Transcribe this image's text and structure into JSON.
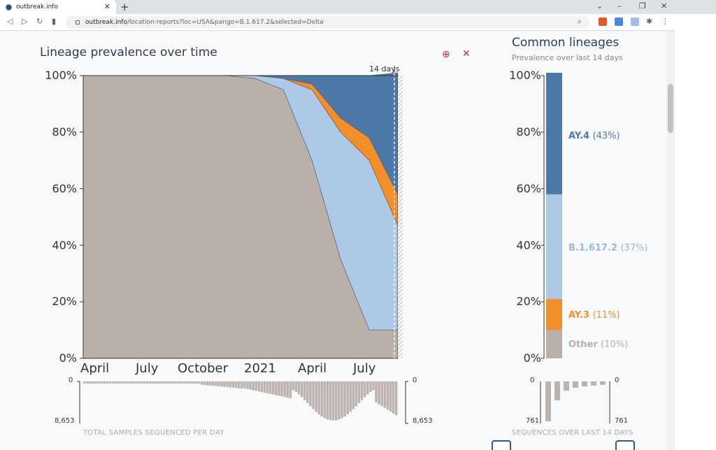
{
  "browser": {
    "tab_title": "outbreak.info",
    "new_tab": "+",
    "close_tab": "✕",
    "url_host": "outbreak.info",
    "url_path": "/location-reports?loc=USA&pango=B.1.617.2&selected=Delta",
    "minimize": "–",
    "restore": "❐",
    "close_window": "✕"
  },
  "main_chart": {
    "title": "Lineage prevalence over time",
    "window_label": "14 days",
    "caption": "TOTAL SAMPLES SEQUENCED PER DAY",
    "y_ticks": [
      "100%",
      "80%",
      "60%",
      "40%",
      "20%",
      "0%"
    ],
    "x_ticks": [
      "April",
      "July",
      "October",
      "2021",
      "April",
      "July"
    ],
    "count_top": "0",
    "count_bottom": "8,653",
    "count_top_right": "0",
    "count_bottom_right": "8,653"
  },
  "side_chart": {
    "title": "Common lineages",
    "subtitle": "Prevalence over last 14 days",
    "y_ticks": [
      "100%",
      "80%",
      "60%",
      "40%",
      "20%",
      "0%"
    ],
    "caption": "SEQUENCES OVER LAST 14 DAYS",
    "count_top": "0",
    "count_bottom": "761",
    "count_top_right": "0",
    "count_bottom_right": "761"
  },
  "chart_data": [
    {
      "type": "area",
      "title": "Lineage prevalence over time",
      "xlabel": "",
      "ylabel": "",
      "ylim": [
        0,
        100
      ],
      "x_tick_labels": [
        "April",
        "July",
        "October",
        "2021",
        "April",
        "July"
      ],
      "series": [
        {
          "name": "Other",
          "color": "#b9b0ab",
          "values": [
            100,
            100,
            100,
            100,
            100,
            100,
            99,
            95,
            70,
            35,
            10,
            10
          ]
        },
        {
          "name": "B.1.617.2",
          "color": "#aec9e8",
          "values": [
            0,
            0,
            0,
            0,
            0,
            0,
            1,
            4,
            25,
            45,
            60,
            37
          ]
        },
        {
          "name": "AY.3",
          "color": "#f28e2b",
          "values": [
            0,
            0,
            0,
            0,
            0,
            0,
            0,
            0,
            2,
            5,
            8,
            11
          ]
        },
        {
          "name": "AY.4",
          "color": "#4e79a7",
          "values": [
            0,
            0,
            0,
            0,
            0,
            0,
            0,
            1,
            3,
            15,
            22,
            43
          ]
        }
      ]
    },
    {
      "type": "bar",
      "title": "Common lineages",
      "subtitle": "Prevalence over last 14 days",
      "ylim": [
        0,
        100
      ],
      "categories": [
        "AY.4",
        "B.1.617.2",
        "AY.3",
        "Other"
      ],
      "values": [
        43,
        37,
        11,
        10
      ],
      "labels": [
        "AY.4",
        "B.1.617.2",
        "AY.3",
        "Other"
      ],
      "pct_labels": [
        "(43%)",
        "(37%)",
        "(11%)",
        "(10%)"
      ],
      "colors": [
        "#4e79a7",
        "#aec9e8",
        "#f28e2b",
        "#b9b0ab"
      ],
      "label_colors": [
        "#4e79a7",
        "#9ab8dc",
        "#f28e2b",
        "#b9b0ab"
      ]
    }
  ]
}
